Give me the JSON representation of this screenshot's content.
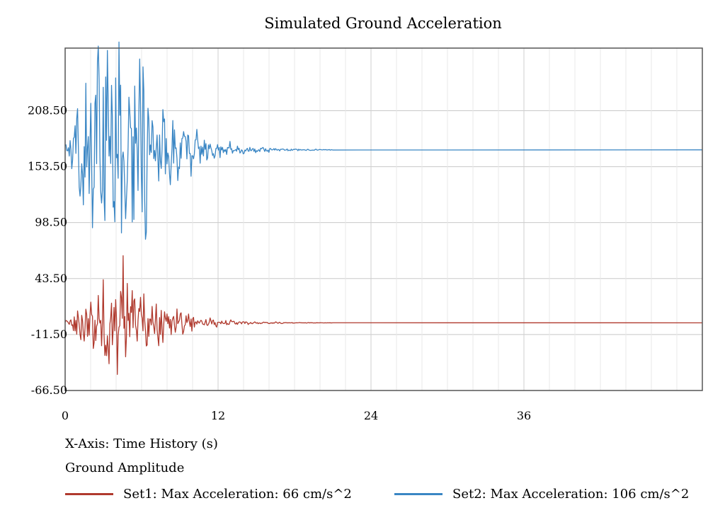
{
  "chart_data": {
    "type": "line",
    "title": "Simulated Ground Acceleration",
    "xlabel": "X-Axis: Time History (s)",
    "ylabel": "Ground Amplitude",
    "x_ticks": [
      "0",
      "12",
      "24",
      "36"
    ],
    "x_tick_values": [
      0,
      12,
      24,
      36
    ],
    "y_ticks": [
      "208.50",
      "153.50",
      "98.50",
      "43.50",
      "-11.50",
      "-66.50"
    ],
    "y_tick_values": [
      208.5,
      153.5,
      98.5,
      43.5,
      -11.5,
      -66.5
    ],
    "xlim": [
      0,
      50
    ],
    "ylim": [
      -66.5,
      270
    ],
    "grid": true,
    "legend_position": "bottom",
    "series": [
      {
        "name": "Set1: Max Acceleration: 66 cm/s^2",
        "color": "#b03a2e",
        "baseline": 0,
        "amplitude": 66,
        "peak_time": 4.6,
        "duration": 21,
        "x_end": 50
      },
      {
        "name": "Set2: Max Acceleration: 106 cm/s^2",
        "color": "#3a86c4",
        "baseline": 170,
        "amplitude": 106,
        "peak_time": 4.6,
        "duration": 21,
        "x_end": 50
      }
    ]
  }
}
